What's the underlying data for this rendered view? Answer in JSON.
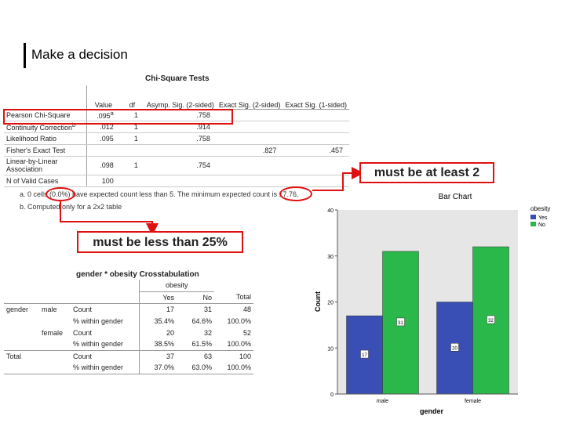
{
  "slide": {
    "title": "Make a decision"
  },
  "chi_square": {
    "title": "Chi-Square Tests",
    "headers": [
      "",
      "Value",
      "df",
      "Asymp. Sig. (2-sided)",
      "Exact Sig. (2-sided)",
      "Exact Sig. (1-sided)"
    ],
    "rows": [
      {
        "label": "Pearson Chi-Square",
        "value": ".095",
        "sup": "a",
        "df": "1",
        "asymp": ".758",
        "exact2": "",
        "exact1": ""
      },
      {
        "label": "Continuity Correction",
        "value": ".012",
        "sup": "b",
        "df": "1",
        "asymp": ".914",
        "exact2": "",
        "exact1": ""
      },
      {
        "label": "Likelihood Ratio",
        "value": ".095",
        "sup": "",
        "df": "1",
        "asymp": ".758",
        "exact2": "",
        "exact1": ""
      },
      {
        "label": "Fisher's Exact Test",
        "value": "",
        "sup": "",
        "df": "",
        "asymp": "",
        "exact2": ".827",
        "exact1": ".457"
      },
      {
        "label": "Linear-by-Linear Association",
        "value": ".098",
        "sup": "",
        "df": "1",
        "asymp": ".754",
        "exact2": "",
        "exact1": ""
      },
      {
        "label": "N of Valid Cases",
        "value": "100",
        "sup": "",
        "df": "",
        "asymp": "",
        "exact2": "",
        "exact1": ""
      }
    ],
    "footnote_a": "a. 0 cells (0.0%) have expected count less than 5. The minimum expected count is 17.76.",
    "footnote_b": "b. Computed only for a 2x2 table"
  },
  "callouts": {
    "must_be_at_least": "must be at least 2",
    "must_be_less_than": "must be less than 25%"
  },
  "crosstab": {
    "title": "gender * obesity Crosstabulation",
    "col_group": "obesity",
    "cols": [
      "Yes",
      "No",
      "Total"
    ],
    "rows": [
      {
        "g1": "gender",
        "g2": "male",
        "stat": "Count",
        "v": [
          "17",
          "31",
          "48"
        ]
      },
      {
        "g1": "",
        "g2": "",
        "stat": "% within gender",
        "v": [
          "35.4%",
          "64.6%",
          "100.0%"
        ]
      },
      {
        "g1": "",
        "g2": "female",
        "stat": "Count",
        "v": [
          "20",
          "32",
          "52"
        ]
      },
      {
        "g1": "",
        "g2": "",
        "stat": "% within gender",
        "v": [
          "38.5%",
          "61.5%",
          "100.0%"
        ]
      },
      {
        "g1": "Total",
        "g2": "",
        "stat": "Count",
        "v": [
          "37",
          "63",
          "100"
        ]
      },
      {
        "g1": "",
        "g2": "",
        "stat": "% within gender",
        "v": [
          "37.0%",
          "63.0%",
          "100.0%"
        ]
      }
    ]
  },
  "chart_data": {
    "type": "bar",
    "title": "Bar Chart",
    "xlabel": "gender",
    "ylabel": "Count",
    "categories": [
      "male",
      "female"
    ],
    "series": [
      {
        "name": "Yes",
        "values": [
          17,
          20
        ],
        "color": "#3a4fb5"
      },
      {
        "name": "No",
        "values": [
          31,
          32
        ],
        "color": "#2bb84a"
      }
    ],
    "legend_title": "obesity",
    "legend_position": "top-right",
    "ylim": [
      0,
      40
    ],
    "yticks": [
      "0",
      "10",
      "20",
      "30",
      "40"
    ]
  }
}
